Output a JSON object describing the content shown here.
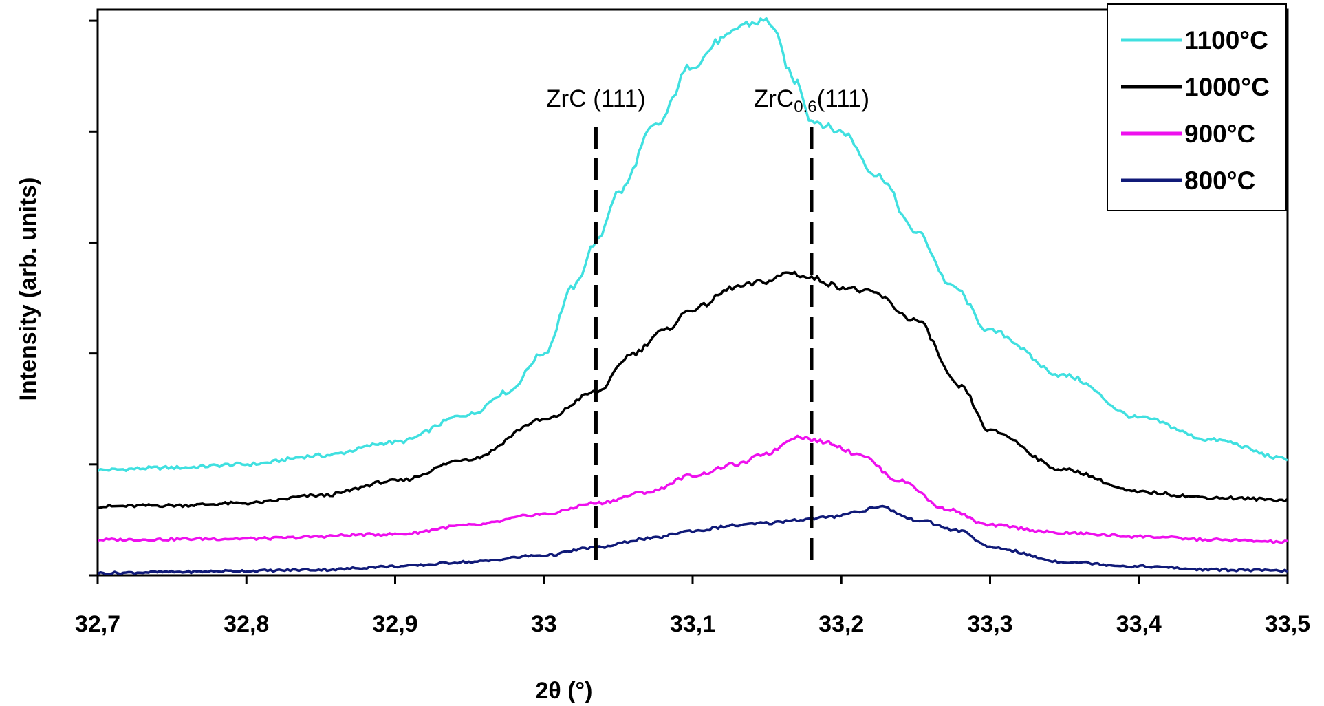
{
  "chart_data": {
    "type": "line",
    "xlabel": "2θ (°)",
    "ylabel": "Intensity (arb. units)",
    "xlim": [
      32.7,
      33.5
    ],
    "ylim": [
      0,
      5.1
    ],
    "x_ticks": [
      32.7,
      32.8,
      32.9,
      33.0,
      33.1,
      33.2,
      33.3,
      33.4,
      33.5
    ],
    "x_tick_labels": [
      "32,7",
      "32,8",
      "32,9",
      "33",
      "33,1",
      "33,2",
      "33,3",
      "33,4",
      "33,5"
    ],
    "y_tick_labels_shown": false,
    "grid": false,
    "legend_position": "top-right",
    "legend": [
      "1100°C",
      "1000°C",
      "900°C",
      "800°C"
    ],
    "reference_lines": [
      {
        "x": 33.035,
        "label_main": "ZrC",
        "label_sub": "",
        "label_rest": " (111)"
      },
      {
        "x": 33.18,
        "label_main": "ZrC",
        "label_sub": "0.6",
        "label_rest": "(111)"
      }
    ],
    "series": [
      {
        "name": "1100°C",
        "color": "#40e0e0",
        "x": [
          32.7,
          32.75,
          32.8,
          32.85,
          32.9,
          32.95,
          32.975,
          33.0,
          33.02,
          33.035,
          33.05,
          33.075,
          33.1,
          33.12,
          33.135,
          33.15,
          33.17,
          33.18,
          33.2,
          33.225,
          33.25,
          33.275,
          33.3,
          33.35,
          33.4,
          33.45,
          33.5
        ],
        "y": [
          0.95,
          0.97,
          1.0,
          1.08,
          1.2,
          1.45,
          1.65,
          2.0,
          2.6,
          3.0,
          3.45,
          4.05,
          4.6,
          4.83,
          4.97,
          5.0,
          4.45,
          4.1,
          4.0,
          3.6,
          3.1,
          2.6,
          2.2,
          1.8,
          1.42,
          1.22,
          1.05
        ]
      },
      {
        "name": "1000°C",
        "color": "#000000",
        "x": [
          32.7,
          32.75,
          32.8,
          32.85,
          32.9,
          32.95,
          33.0,
          33.035,
          33.06,
          33.08,
          33.1,
          33.13,
          33.15,
          33.165,
          33.18,
          33.2,
          33.22,
          33.25,
          33.28,
          33.3,
          33.35,
          33.4,
          33.45,
          33.5
        ],
        "y": [
          0.62,
          0.63,
          0.65,
          0.72,
          0.85,
          1.05,
          1.4,
          1.65,
          2.0,
          2.2,
          2.4,
          2.6,
          2.65,
          2.73,
          2.68,
          2.6,
          2.55,
          2.3,
          1.7,
          1.3,
          0.95,
          0.75,
          0.7,
          0.68
        ]
      },
      {
        "name": "900°C",
        "color": "#ee10ee",
        "x": [
          32.7,
          32.8,
          32.9,
          32.95,
          33.0,
          33.035,
          33.07,
          33.1,
          33.13,
          33.15,
          33.17,
          33.19,
          33.21,
          33.24,
          33.27,
          33.3,
          33.35,
          33.4,
          33.45,
          33.5
        ],
        "y": [
          0.32,
          0.33,
          0.37,
          0.45,
          0.55,
          0.65,
          0.75,
          0.9,
          1.0,
          1.1,
          1.25,
          1.2,
          1.1,
          0.85,
          0.6,
          0.45,
          0.38,
          0.35,
          0.32,
          0.3
        ]
      },
      {
        "name": "800°C",
        "color": "#101a78",
        "x": [
          32.7,
          32.75,
          32.8,
          32.85,
          32.9,
          32.95,
          33.0,
          33.035,
          33.07,
          33.1,
          33.13,
          33.15,
          33.17,
          33.19,
          33.21,
          33.225,
          33.25,
          33.28,
          33.3,
          33.35,
          33.4,
          33.45,
          33.5
        ],
        "y": [
          0.02,
          0.03,
          0.04,
          0.05,
          0.08,
          0.12,
          0.18,
          0.25,
          0.33,
          0.4,
          0.45,
          0.47,
          0.5,
          0.52,
          0.57,
          0.62,
          0.5,
          0.4,
          0.25,
          0.12,
          0.08,
          0.05,
          0.04
        ]
      }
    ]
  }
}
